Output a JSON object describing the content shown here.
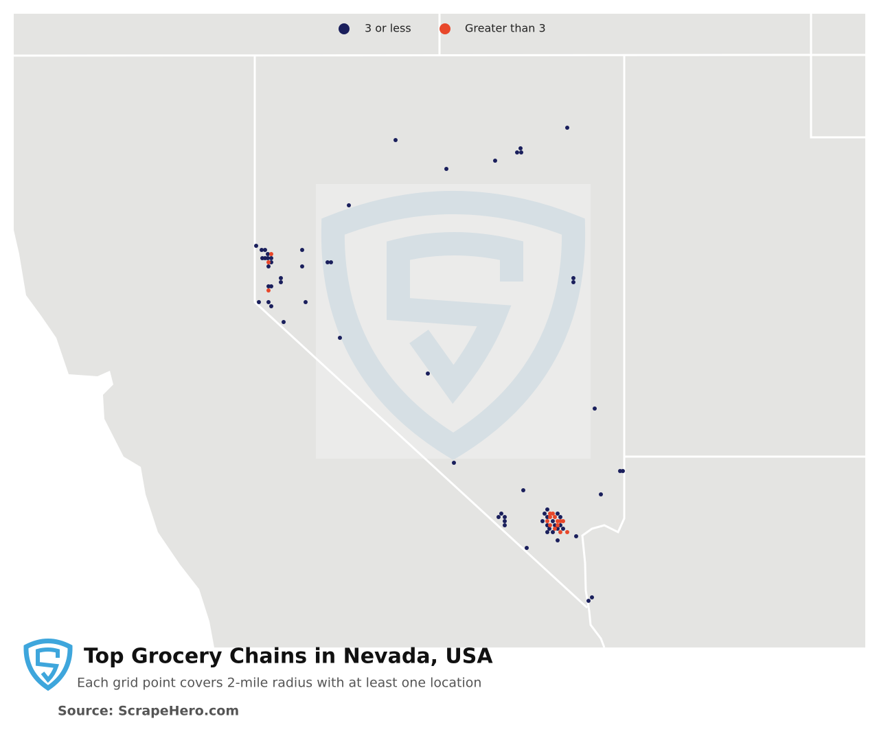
{
  "legend": {
    "items": [
      {
        "label": "3 or less",
        "color": "#1a1f5c"
      },
      {
        "label": "Greater than 3",
        "color": "#e8472a"
      }
    ]
  },
  "footer": {
    "title": "Top Grocery Chains in Nevada, USA",
    "subtitle": "Each grid point covers 2-mile radius with at least one location",
    "source": "Source: ScrapeHero.com"
  }
}
